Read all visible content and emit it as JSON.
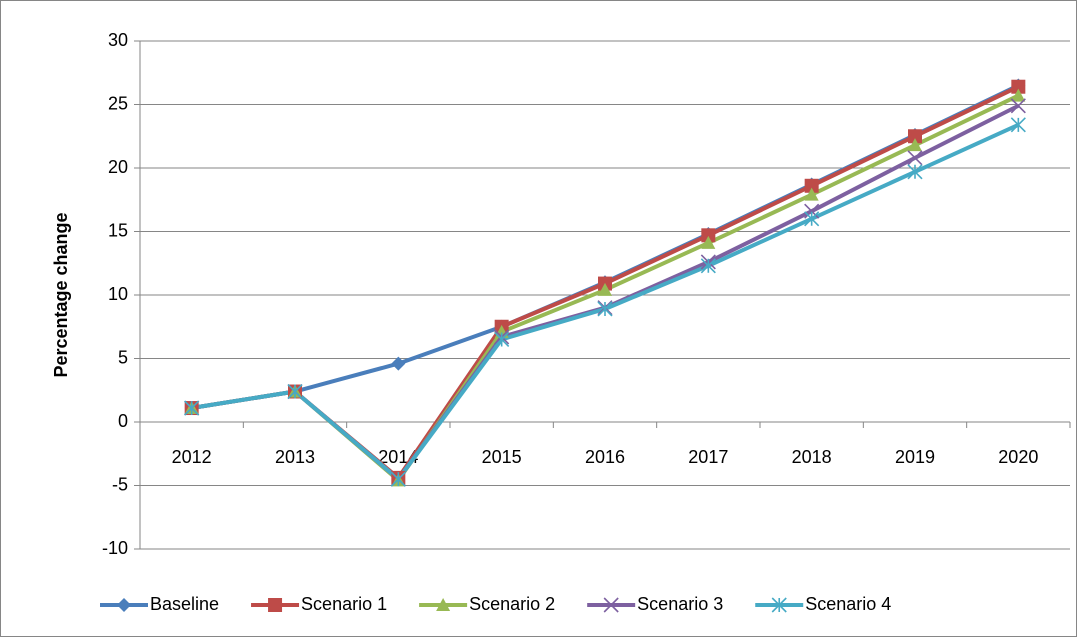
{
  "chart_data": {
    "type": "line",
    "ylabel": "Percentage change",
    "categories": [
      "2012",
      "2013",
      "2014",
      "2015",
      "2016",
      "2017",
      "2018",
      "2019",
      "2020"
    ],
    "ylim": [
      -10,
      30
    ],
    "yticks": [
      -10,
      -5,
      0,
      5,
      10,
      15,
      20,
      25,
      30
    ],
    "grid": true,
    "legend": "bottom",
    "series": [
      {
        "name": "Baseline",
        "color": "#4a7ebb",
        "marker": "diamond",
        "values": [
          1.1,
          2.4,
          4.6,
          7.5,
          11.0,
          14.8,
          18.7,
          22.6,
          26.5
        ]
      },
      {
        "name": "Scenario 1",
        "color": "#be4b48",
        "marker": "square",
        "values": [
          1.1,
          2.4,
          -4.4,
          7.5,
          10.9,
          14.7,
          18.6,
          22.5,
          26.4
        ]
      },
      {
        "name": "Scenario 2",
        "color": "#98b954",
        "marker": "triangle",
        "values": [
          1.1,
          2.4,
          -4.6,
          7.1,
          10.4,
          14.1,
          17.9,
          21.8,
          25.7
        ]
      },
      {
        "name": "Scenario 3",
        "color": "#7d60a0",
        "marker": "x",
        "values": [
          1.1,
          2.4,
          -4.5,
          6.7,
          9.0,
          12.6,
          16.6,
          20.8,
          24.9
        ]
      },
      {
        "name": "Scenario 4",
        "color": "#46aac5",
        "marker": "star",
        "values": [
          1.1,
          2.4,
          -4.5,
          6.5,
          8.9,
          12.3,
          16.0,
          19.7,
          23.4
        ]
      }
    ]
  }
}
